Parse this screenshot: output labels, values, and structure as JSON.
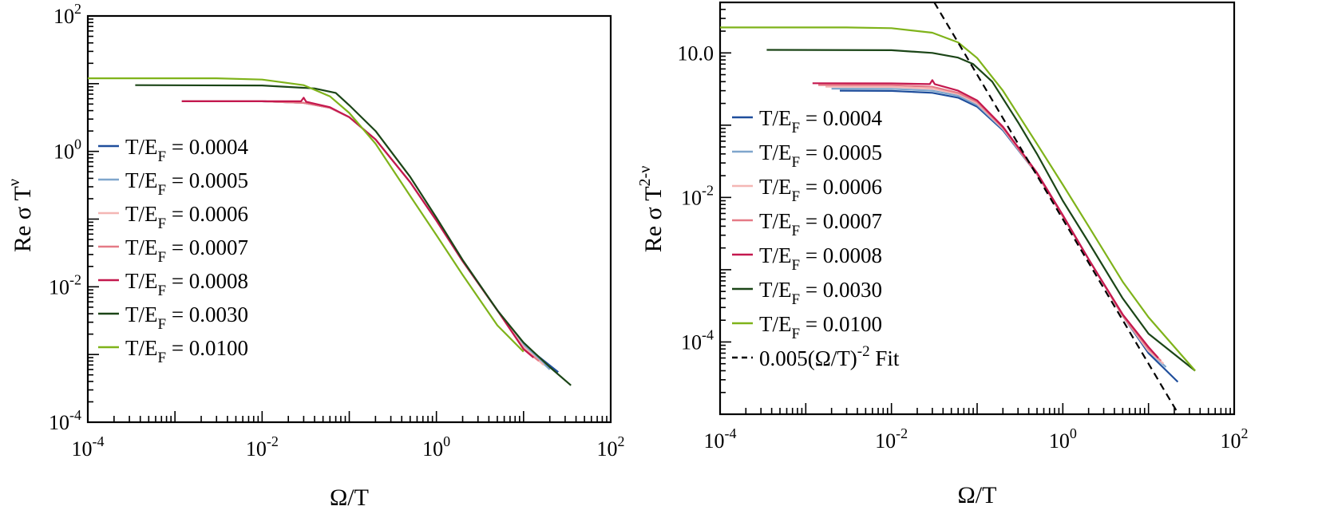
{
  "chart_data": [
    {
      "type": "line",
      "xscale": "log",
      "yscale": "log",
      "xlim": [
        0.0001,
        100
      ],
      "ylim": [
        0.0001,
        100
      ],
      "xlabel": "Ω/T",
      "ylabel_main": "Re σ T",
      "ylabel_sup": "ν",
      "xticks": [
        {
          "base": "10",
          "exp": "-4"
        },
        {
          "base": "10",
          "exp": "-2"
        },
        {
          "base": "10",
          "exp": "0"
        },
        {
          "base": "10",
          "exp": "2"
        }
      ],
      "yticks": [
        {
          "base": "10",
          "exp": "-4"
        },
        {
          "base": "10",
          "exp": "-2"
        },
        {
          "base": "10",
          "exp": "0"
        },
        {
          "base": "10",
          "exp": "2"
        }
      ],
      "legend_position": "left",
      "series": [
        {
          "name": "T/E_F = 0.0004",
          "legend_main": "T/E",
          "legend_sub": "F",
          "legend_tail": " = 0.0004",
          "color": "#1f4e9c",
          "points": [
            [
              0.0012,
              5.5
            ],
            [
              0.01,
              5.5
            ],
            [
              0.03,
              5.2
            ],
            [
              0.06,
              4.4
            ],
            [
              0.1,
              3.2
            ],
            [
              0.2,
              1.5
            ],
            [
              0.5,
              0.35
            ],
            [
              1,
              0.095
            ],
            [
              2,
              0.024
            ],
            [
              5,
              0.0045
            ],
            [
              10,
              0.0014
            ],
            [
              25,
              0.00055
            ]
          ]
        },
        {
          "name": "T/E_F = 0.0005",
          "legend_main": "T/E",
          "legend_sub": "F",
          "legend_tail": " = 0.0005",
          "color": "#7fa6cc",
          "points": [
            [
              0.0012,
              5.5
            ],
            [
              0.01,
              5.5
            ],
            [
              0.03,
              5.2
            ],
            [
              0.06,
              4.4
            ],
            [
              0.1,
              3.2
            ],
            [
              0.2,
              1.5
            ],
            [
              0.5,
              0.35
            ],
            [
              1,
              0.095
            ],
            [
              2,
              0.024
            ],
            [
              5,
              0.0045
            ],
            [
              10,
              0.0014
            ],
            [
              20,
              0.0006
            ]
          ]
        },
        {
          "name": "T/E_F = 0.0006",
          "legend_main": "T/E",
          "legend_sub": "F",
          "legend_tail": " = 0.0006",
          "color": "#f4b6b4",
          "points": [
            [
              0.0012,
              5.5
            ],
            [
              0.01,
              5.5
            ],
            [
              0.03,
              5.2
            ],
            [
              0.06,
              4.4
            ],
            [
              0.1,
              3.2
            ],
            [
              0.2,
              1.5
            ],
            [
              0.5,
              0.35
            ],
            [
              1,
              0.095
            ],
            [
              2,
              0.024
            ],
            [
              5,
              0.0045
            ],
            [
              10,
              0.0013
            ],
            [
              17,
              0.0007
            ]
          ]
        },
        {
          "name": "T/E_F = 0.0007",
          "legend_main": "T/E",
          "legend_sub": "F",
          "legend_tail": " = 0.0007",
          "color": "#e57a86",
          "points": [
            [
              0.0012,
              5.5
            ],
            [
              0.01,
              5.5
            ],
            [
              0.03,
              5.2
            ],
            [
              0.06,
              4.4
            ],
            [
              0.1,
              3.2
            ],
            [
              0.2,
              1.5
            ],
            [
              0.5,
              0.35
            ],
            [
              1,
              0.095
            ],
            [
              2,
              0.024
            ],
            [
              5,
              0.0045
            ],
            [
              10,
              0.0012
            ],
            [
              15,
              0.0008
            ]
          ]
        },
        {
          "name": "T/E_F = 0.0008",
          "legend_main": "T/E",
          "legend_sub": "F",
          "legend_tail": " = 0.0008",
          "color": "#c4184e",
          "points": [
            [
              0.0012,
              5.5
            ],
            [
              0.01,
              5.5
            ],
            [
              0.028,
              5.5
            ],
            [
              0.03,
              6.2
            ],
            [
              0.032,
              5.4
            ],
            [
              0.06,
              4.5
            ],
            [
              0.1,
              3.2
            ],
            [
              0.2,
              1.5
            ],
            [
              0.5,
              0.35
            ],
            [
              1,
              0.095
            ],
            [
              2,
              0.024
            ],
            [
              5,
              0.0045
            ],
            [
              10,
              0.0012
            ],
            [
              13,
              0.0009
            ]
          ]
        },
        {
          "name": "T/E_F = 0.0030",
          "legend_main": "T/E",
          "legend_sub": "F",
          "legend_tail": " = 0.0030",
          "color": "#1b4517",
          "points": [
            [
              0.00035,
              9.5
            ],
            [
              0.01,
              9.4
            ],
            [
              0.04,
              8.5
            ],
            [
              0.07,
              7.3
            ],
            [
              0.1,
              4.8
            ],
            [
              0.2,
              2.0
            ],
            [
              0.5,
              0.42
            ],
            [
              1,
              0.105
            ],
            [
              2,
              0.025
            ],
            [
              5,
              0.0045
            ],
            [
              10,
              0.0015
            ],
            [
              20,
              0.00065
            ],
            [
              35,
              0.00035
            ]
          ]
        },
        {
          "name": "T/E_F = 0.0100",
          "legend_main": "T/E",
          "legend_sub": "F",
          "legend_tail": " = 0.0100",
          "color": "#7fb31a",
          "points": [
            [
              0.0001,
              12
            ],
            [
              0.003,
              12
            ],
            [
              0.01,
              11.5
            ],
            [
              0.03,
              9.5
            ],
            [
              0.06,
              6.5
            ],
            [
              0.1,
              3.7
            ],
            [
              0.2,
              1.3
            ],
            [
              0.5,
              0.22
            ],
            [
              1,
              0.058
            ],
            [
              2,
              0.015
            ],
            [
              5,
              0.0027
            ],
            [
              10,
              0.0011
            ]
          ]
        }
      ]
    },
    {
      "type": "line",
      "xscale": "log",
      "yscale": "log",
      "xlim": [
        0.0001,
        100
      ],
      "ylim": [
        1e-05,
        5
      ],
      "xlabel": "Ω/T",
      "ylabel_main": "Re σ T",
      "ylabel_sup": "2-ν",
      "xticks": [
        {
          "base": "10",
          "exp": "-4"
        },
        {
          "base": "10",
          "exp": "-2"
        },
        {
          "base": "10",
          "exp": "0"
        },
        {
          "base": "10",
          "exp": "2"
        }
      ],
      "yticks": [
        {
          "base": "10",
          "exp": "-4"
        },
        {
          "base": "10",
          "exp": "-2"
        },
        {
          "label": "10.0"
        }
      ],
      "legend_position": "left",
      "series": [
        {
          "name": "T/E_F = 0.0004",
          "legend_main": "T/E",
          "legend_sub": "F",
          "legend_tail": " = 0.0004",
          "color": "#1f4e9c",
          "points": [
            [
              0.0025,
              0.3
            ],
            [
              0.01,
              0.298
            ],
            [
              0.03,
              0.28
            ],
            [
              0.06,
              0.24
            ],
            [
              0.1,
              0.18
            ],
            [
              0.2,
              0.085
            ],
            [
              0.5,
              0.021
            ],
            [
              1,
              0.0055
            ],
            [
              2,
              0.0014
            ],
            [
              5,
              0.00023
            ],
            [
              10,
              7e-05
            ],
            [
              22,
              2.8e-05
            ]
          ]
        },
        {
          "name": "T/E_F = 0.0005",
          "legend_main": "T/E",
          "legend_sub": "F",
          "legend_tail": " = 0.0005",
          "color": "#7fa6cc",
          "points": [
            [
              0.002,
              0.32
            ],
            [
              0.01,
              0.318
            ],
            [
              0.03,
              0.3
            ],
            [
              0.06,
              0.255
            ],
            [
              0.1,
              0.19
            ],
            [
              0.2,
              0.088
            ],
            [
              0.5,
              0.021
            ],
            [
              1,
              0.0055
            ],
            [
              2,
              0.0014
            ],
            [
              5,
              0.00023
            ],
            [
              10,
              7.5e-05
            ],
            [
              16,
              4.5e-05
            ]
          ]
        },
        {
          "name": "T/E_F = 0.0006",
          "legend_main": "T/E",
          "legend_sub": "F",
          "legend_tail": " = 0.0006",
          "color": "#f4b6b4",
          "points": [
            [
              0.0017,
              0.34
            ],
            [
              0.01,
              0.338
            ],
            [
              0.03,
              0.32
            ],
            [
              0.06,
              0.27
            ],
            [
              0.1,
              0.2
            ],
            [
              0.2,
              0.09
            ],
            [
              0.5,
              0.021
            ],
            [
              1,
              0.0055
            ],
            [
              2,
              0.0014
            ],
            [
              5,
              0.00023
            ],
            [
              10,
              7.5e-05
            ],
            [
              15,
              5e-05
            ]
          ]
        },
        {
          "name": "T/E_F = 0.0007",
          "legend_main": "T/E",
          "legend_sub": "F",
          "legend_tail": " = 0.0007",
          "color": "#e57a86",
          "points": [
            [
              0.0014,
              0.36
            ],
            [
              0.01,
              0.358
            ],
            [
              0.03,
              0.34
            ],
            [
              0.06,
              0.28
            ],
            [
              0.1,
              0.21
            ],
            [
              0.2,
              0.092
            ],
            [
              0.5,
              0.021
            ],
            [
              1,
              0.0055
            ],
            [
              2,
              0.0014
            ],
            [
              5,
              0.00023
            ],
            [
              10,
              8e-05
            ],
            [
              14,
              5.5e-05
            ]
          ]
        },
        {
          "name": "T/E_F = 0.0008",
          "legend_main": "T/E",
          "legend_sub": "F",
          "legend_tail": " = 0.0008",
          "color": "#c4184e",
          "points": [
            [
              0.0012,
              0.38
            ],
            [
              0.01,
              0.378
            ],
            [
              0.028,
              0.37
            ],
            [
              0.03,
              0.42
            ],
            [
              0.032,
              0.37
            ],
            [
              0.06,
              0.3
            ],
            [
              0.1,
              0.22
            ],
            [
              0.2,
              0.095
            ],
            [
              0.5,
              0.022
            ],
            [
              1,
              0.0057
            ],
            [
              2,
              0.0014
            ],
            [
              5,
              0.00024
            ],
            [
              10,
              8.5e-05
            ],
            [
              13,
              6e-05
            ]
          ]
        },
        {
          "name": "T/E_F = 0.0030",
          "legend_main": "T/E",
          "legend_sub": "F",
          "legend_tail": " = 0.0030",
          "color": "#1b4517",
          "points": [
            [
              0.00035,
              1.1
            ],
            [
              0.01,
              1.09
            ],
            [
              0.03,
              1.0
            ],
            [
              0.06,
              0.86
            ],
            [
              0.09,
              0.7
            ],
            [
              0.15,
              0.4
            ],
            [
              0.3,
              0.11
            ],
            [
              0.5,
              0.04
            ],
            [
              1,
              0.009
            ],
            [
              2,
              0.0024
            ],
            [
              5,
              0.0004
            ],
            [
              10,
              0.00013
            ],
            [
              35,
              4e-05
            ]
          ]
        },
        {
          "name": "T/E_F = 0.0100",
          "legend_main": "T/E",
          "legend_sub": "F",
          "legend_tail": " = 0.0100",
          "color": "#7fb31a",
          "points": [
            [
              0.0001,
              2.25
            ],
            [
              0.003,
              2.25
            ],
            [
              0.01,
              2.2
            ],
            [
              0.03,
              1.9
            ],
            [
              0.06,
              1.4
            ],
            [
              0.1,
              0.85
            ],
            [
              0.2,
              0.3
            ],
            [
              0.5,
              0.055
            ],
            [
              1,
              0.015
            ],
            [
              2,
              0.004
            ],
            [
              5,
              0.00068
            ],
            [
              10,
              0.00022
            ],
            [
              35,
              4e-05
            ]
          ]
        },
        {
          "name": "0.005(Ω/T)^-2 Fit",
          "legend_main": "0.005(Ω/T)",
          "legend_sup": "-2",
          "legend_tail": " Fit",
          "color": "#000000",
          "dashed": true,
          "points": [
            [
              0.0316,
              5
            ],
            [
              0.05,
              2
            ],
            [
              0.1,
              0.5
            ],
            [
              1,
              0.005
            ],
            [
              10,
              5e-05
            ],
            [
              22.4,
              1e-05
            ]
          ]
        }
      ]
    }
  ]
}
